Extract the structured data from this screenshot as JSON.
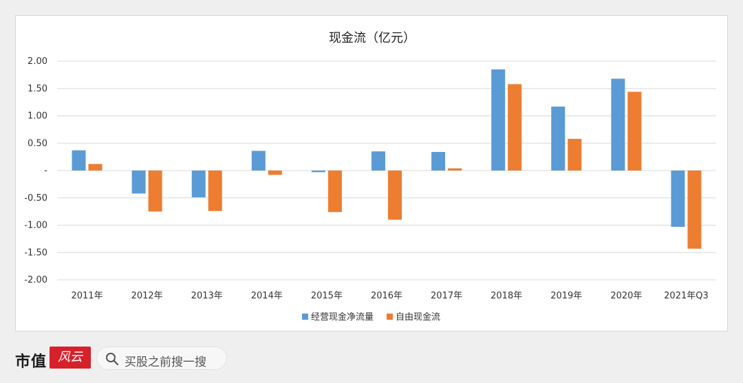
{
  "chart_data": {
    "type": "bar",
    "title": "现金流（亿元）",
    "categories": [
      "2011年",
      "2012年",
      "2013年",
      "2014年",
      "2015年",
      "2016年",
      "2017年",
      "2018年",
      "2019年",
      "2020年",
      "2021年Q3"
    ],
    "series": [
      {
        "name": "经营现金净流量",
        "color": "#5b9bd5",
        "values": [
          0.37,
          -0.42,
          -0.49,
          0.36,
          -0.03,
          0.35,
          0.34,
          1.85,
          1.17,
          1.68,
          -1.03
        ]
      },
      {
        "name": "自由现金流",
        "color": "#ed7d31",
        "values": [
          0.12,
          -0.75,
          -0.74,
          -0.08,
          -0.76,
          -0.9,
          0.04,
          1.58,
          0.58,
          1.44,
          -1.43
        ]
      }
    ],
    "ylim": [
      -2.0,
      2.0
    ],
    "yticks": [
      2.0,
      1.5,
      1.0,
      0.5,
      0,
      -0.5,
      -1.0,
      -1.5,
      -2.0
    ],
    "ytick_labels": [
      "2.00",
      "1.50",
      "1.00",
      "0.50",
      "-",
      "-0.50",
      "-1.00",
      "-1.50",
      "-2.00"
    ],
    "grid": true,
    "legend_position": "bottom"
  },
  "footer": {
    "brand": "市值",
    "brand_seal": "风云",
    "search_text": "买股之前搜一搜"
  }
}
